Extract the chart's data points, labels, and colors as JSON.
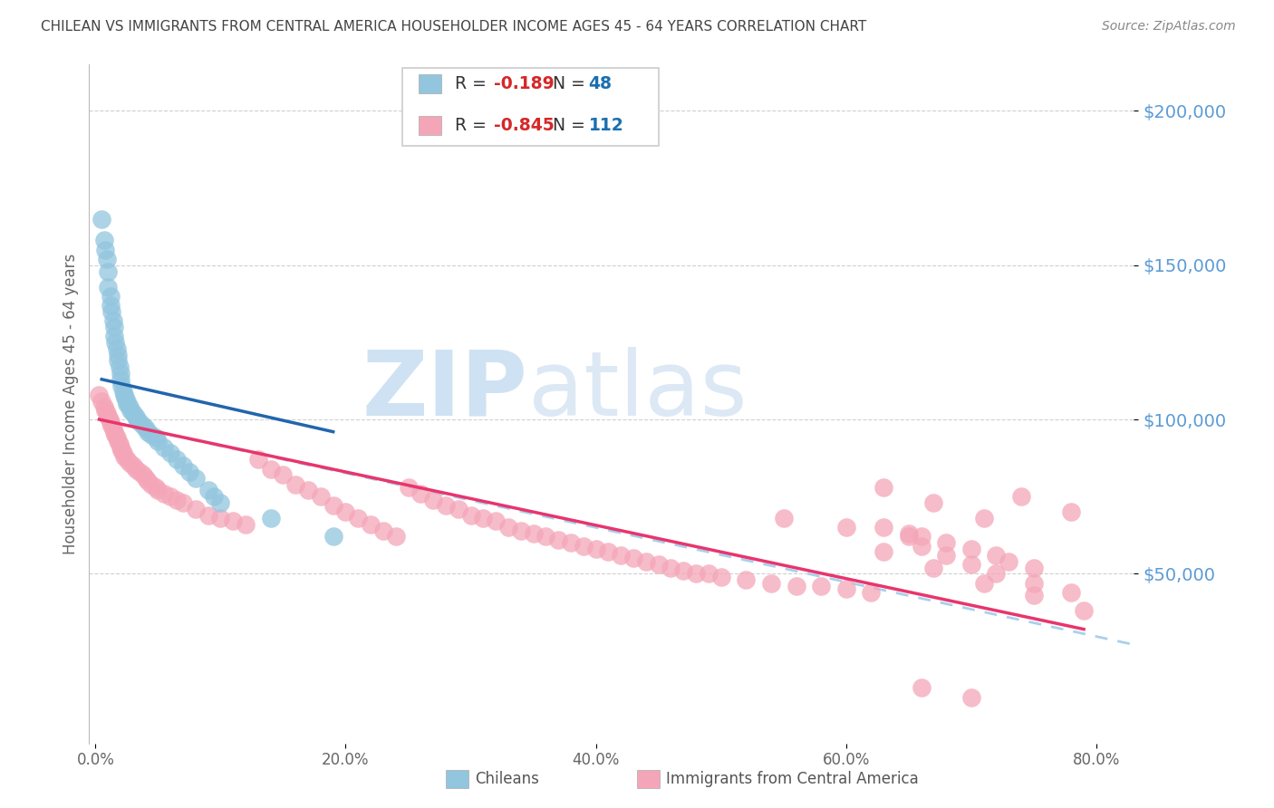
{
  "title": "CHILEAN VS IMMIGRANTS FROM CENTRAL AMERICA HOUSEHOLDER INCOME AGES 45 - 64 YEARS CORRELATION CHART",
  "source": "Source: ZipAtlas.com",
  "ylabel": "Householder Income Ages 45 - 64 years",
  "ytick_labels": [
    "$50,000",
    "$100,000",
    "$150,000",
    "$200,000"
  ],
  "ytick_vals": [
    50000,
    100000,
    150000,
    200000
  ],
  "ylim": [
    -5000,
    215000
  ],
  "xlim": [
    -0.005,
    0.83
  ],
  "xtick_vals": [
    0.0,
    0.2,
    0.4,
    0.6,
    0.8
  ],
  "xtick_labels": [
    "0.0%",
    "20.0%",
    "40.0%",
    "60.0%",
    "80.0%"
  ],
  "legend_label1": "Chileans",
  "legend_label2": "Immigrants from Central America",
  "R1": "-0.189",
  "N1": "48",
  "R2": "-0.845",
  "N2": "112",
  "color_blue": "#92c5de",
  "color_pink": "#f4a6b8",
  "color_line_blue": "#2166ac",
  "color_line_pink": "#e8356d",
  "color_line_dashed": "#a8d0ed",
  "background": "#ffffff",
  "watermark_zip": "ZIP",
  "watermark_atlas": "atlas",
  "watermark_color": "#cfe2f3",
  "title_color": "#444444",
  "axis_label_color": "#666666",
  "ytick_color": "#5b9bd5",
  "xtick_color": "#666666",
  "chileans_x": [
    0.005,
    0.007,
    0.008,
    0.009,
    0.01,
    0.01,
    0.012,
    0.012,
    0.013,
    0.014,
    0.015,
    0.015,
    0.016,
    0.017,
    0.018,
    0.018,
    0.019,
    0.02,
    0.02,
    0.021,
    0.022,
    0.023,
    0.024,
    0.025,
    0.025,
    0.027,
    0.028,
    0.03,
    0.032,
    0.033,
    0.035,
    0.038,
    0.04,
    0.042,
    0.045,
    0.048,
    0.05,
    0.055,
    0.06,
    0.065,
    0.07,
    0.075,
    0.08,
    0.09,
    0.095,
    0.1,
    0.14,
    0.19
  ],
  "chileans_y": [
    165000,
    158000,
    155000,
    152000,
    148000,
    143000,
    140000,
    137000,
    135000,
    132000,
    130000,
    127000,
    125000,
    123000,
    121000,
    119000,
    117000,
    115000,
    113000,
    111000,
    109000,
    108000,
    107000,
    106000,
    105000,
    104000,
    103000,
    102000,
    101000,
    100000,
    99000,
    98000,
    97000,
    96000,
    95000,
    94000,
    93000,
    91000,
    89000,
    87000,
    85000,
    83000,
    81000,
    77000,
    75000,
    73000,
    68000,
    62000
  ],
  "immigrants_x": [
    0.003,
    0.005,
    0.007,
    0.008,
    0.009,
    0.01,
    0.011,
    0.012,
    0.013,
    0.014,
    0.015,
    0.016,
    0.017,
    0.018,
    0.019,
    0.02,
    0.021,
    0.022,
    0.023,
    0.025,
    0.027,
    0.03,
    0.032,
    0.035,
    0.038,
    0.04,
    0.042,
    0.045,
    0.048,
    0.05,
    0.055,
    0.06,
    0.065,
    0.07,
    0.08,
    0.09,
    0.1,
    0.11,
    0.12,
    0.13,
    0.14,
    0.15,
    0.16,
    0.17,
    0.18,
    0.19,
    0.2,
    0.21,
    0.22,
    0.23,
    0.24,
    0.25,
    0.26,
    0.27,
    0.28,
    0.29,
    0.3,
    0.31,
    0.32,
    0.33,
    0.34,
    0.35,
    0.36,
    0.37,
    0.38,
    0.39,
    0.4,
    0.41,
    0.42,
    0.43,
    0.44,
    0.45,
    0.46,
    0.47,
    0.48,
    0.49,
    0.5,
    0.52,
    0.54,
    0.56,
    0.58,
    0.6,
    0.62,
    0.63,
    0.65,
    0.66,
    0.68,
    0.7,
    0.72,
    0.73,
    0.75,
    0.55,
    0.6,
    0.65,
    0.66,
    0.68,
    0.7,
    0.72,
    0.75,
    0.78,
    0.63,
    0.67,
    0.71,
    0.63,
    0.67,
    0.71,
    0.75,
    0.79,
    0.66,
    0.7,
    0.74,
    0.78
  ],
  "immigrants_y": [
    108000,
    106000,
    104000,
    103000,
    102000,
    101000,
    100000,
    99000,
    98000,
    97000,
    96000,
    95000,
    94000,
    93000,
    92000,
    91000,
    90000,
    89000,
    88000,
    87000,
    86000,
    85000,
    84000,
    83000,
    82000,
    81000,
    80000,
    79000,
    78000,
    77000,
    76000,
    75000,
    74000,
    73000,
    71000,
    69000,
    68000,
    67000,
    66000,
    87000,
    84000,
    82000,
    79000,
    77000,
    75000,
    72000,
    70000,
    68000,
    66000,
    64000,
    62000,
    78000,
    76000,
    74000,
    72000,
    71000,
    69000,
    68000,
    67000,
    65000,
    64000,
    63000,
    62000,
    61000,
    60000,
    59000,
    58000,
    57000,
    56000,
    55000,
    54000,
    53000,
    52000,
    51000,
    50000,
    50000,
    49000,
    48000,
    47000,
    46000,
    46000,
    45000,
    44000,
    65000,
    63000,
    62000,
    60000,
    58000,
    56000,
    54000,
    52000,
    68000,
    65000,
    62000,
    59000,
    56000,
    53000,
    50000,
    47000,
    44000,
    78000,
    73000,
    68000,
    57000,
    52000,
    47000,
    43000,
    38000,
    13000,
    10000,
    75000,
    70000
  ],
  "blue_line_x": [
    0.005,
    0.19
  ],
  "blue_line_y": [
    113000,
    96000
  ],
  "pink_line_x": [
    0.003,
    0.79
  ],
  "pink_line_y": [
    100000,
    32000
  ],
  "dashed_line_x": [
    0.003,
    0.83
  ],
  "dashed_line_y": [
    100000,
    27000
  ]
}
